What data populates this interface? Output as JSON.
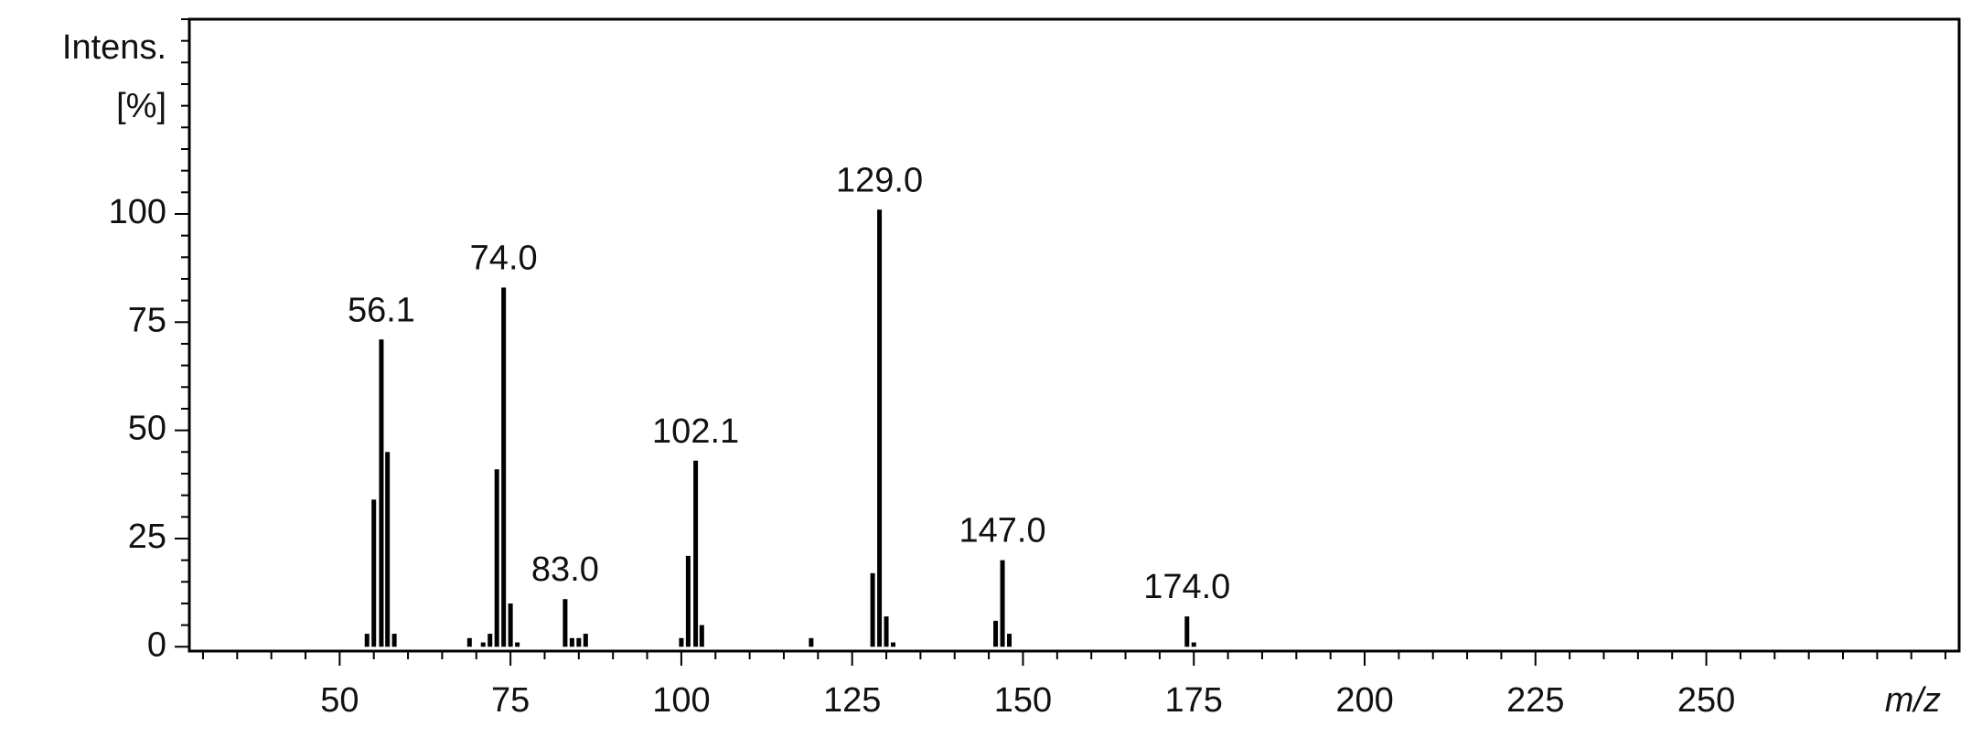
{
  "chart_data": {
    "type": "bar",
    "y_label_lines": [
      "Intens.",
      "[%]"
    ],
    "x_label": "m/z",
    "x": [
      54,
      55,
      56.1,
      57,
      58,
      69,
      71,
      72,
      73,
      74,
      75,
      76,
      83,
      84,
      85,
      86,
      100,
      101,
      102.1,
      103,
      119,
      128,
      129,
      130,
      131,
      146,
      147,
      148,
      174,
      175
    ],
    "values": [
      3,
      34,
      71,
      45,
      3,
      2,
      1,
      3,
      41,
      83,
      10,
      1,
      11,
      2,
      2,
      3,
      2,
      21,
      43,
      5,
      2,
      17,
      101,
      7,
      1,
      6,
      20,
      3,
      7,
      1
    ],
    "color": "#000000",
    "annotations": [
      {
        "text": "56.1",
        "x": 56.1,
        "y": 71
      },
      {
        "text": "74.0",
        "x": 74,
        "y": 83
      },
      {
        "text": "83.0",
        "x": 83,
        "y": 11
      },
      {
        "text": "102.1",
        "x": 102.1,
        "y": 43
      },
      {
        "text": "129.0",
        "x": 129,
        "y": 101
      },
      {
        "text": "147.0",
        "x": 147,
        "y": 20
      },
      {
        "text": "174.0",
        "x": 174,
        "y": 7
      }
    ],
    "xlim": [
      28,
      287
    ],
    "ylim": [
      -1,
      145
    ],
    "xticks": [
      50,
      75,
      100,
      125,
      150,
      175,
      200,
      225,
      250
    ],
    "yticks": [
      0,
      25,
      50,
      75,
      100
    ],
    "xminor_ticks": [
      30,
      35,
      40,
      45,
      55,
      60,
      65,
      70,
      80,
      85,
      90,
      95,
      105,
      110,
      115,
      120,
      130,
      135,
      140,
      145,
      155,
      160,
      165,
      170,
      180,
      185,
      190,
      195,
      205,
      210,
      215,
      220,
      230,
      235,
      240,
      245,
      255,
      260,
      265,
      270,
      275,
      280,
      285
    ],
    "yminor_ticks": [
      5,
      10,
      15,
      20,
      30,
      35,
      40,
      45,
      55,
      60,
      65,
      70,
      80,
      85,
      90,
      95,
      105,
      110,
      115,
      120,
      125,
      130,
      135,
      140,
      145
    ]
  }
}
